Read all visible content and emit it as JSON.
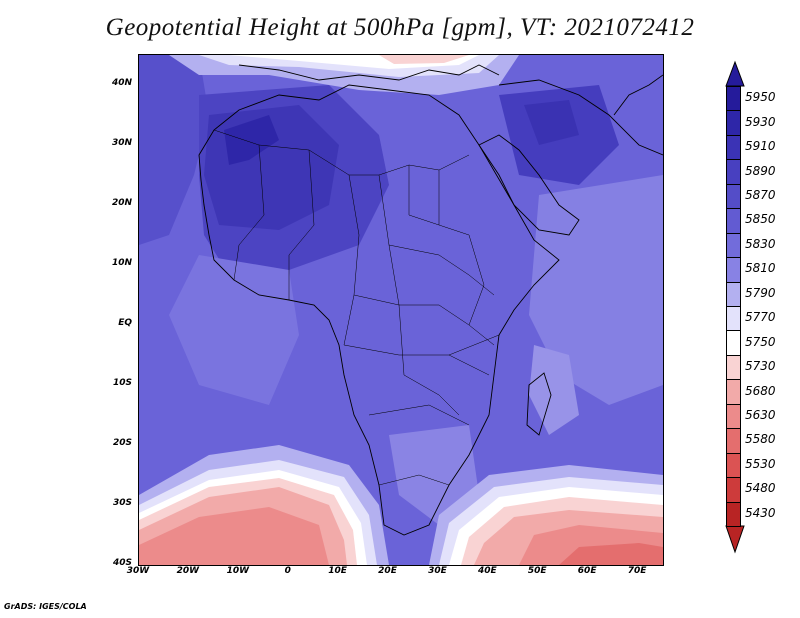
{
  "title": "Geopotential Height at 500hPa [gpm], VT: 2021072412",
  "footer": "GrADS: IGES/COLA",
  "map": {
    "projection": "lat-lon",
    "lon_range": [
      -30,
      75
    ],
    "lat_range": [
      -40,
      45
    ],
    "y_ticks": [
      {
        "label": "40N",
        "lat": 40
      },
      {
        "label": "30N",
        "lat": 30
      },
      {
        "label": "20N",
        "lat": 20
      },
      {
        "label": "10N",
        "lat": 10
      },
      {
        "label": "EQ",
        "lat": 0
      },
      {
        "label": "10S",
        "lat": -10
      },
      {
        "label": "20S",
        "lat": -20
      },
      {
        "label": "30S",
        "lat": -30
      },
      {
        "label": "40S",
        "lat": -40
      }
    ],
    "x_ticks": [
      {
        "label": "30W",
        "lon": -30
      },
      {
        "label": "20W",
        "lon": -20
      },
      {
        "label": "10W",
        "lon": -10
      },
      {
        "label": "0",
        "lon": 0
      },
      {
        "label": "10E",
        "lon": 10
      },
      {
        "label": "20E",
        "lon": 20
      },
      {
        "label": "30E",
        "lon": 30
      },
      {
        "label": "40E",
        "lon": 40
      },
      {
        "label": "50E",
        "lon": 50
      },
      {
        "label": "60E",
        "lon": 60
      },
      {
        "label": "70E",
        "lon": 70
      }
    ]
  },
  "colorbar": {
    "levels": [
      {
        "label": "5950",
        "color": "#251b9b"
      },
      {
        "label": "5930",
        "color": "#2e26a8"
      },
      {
        "label": "5910",
        "color": "#3b33b5"
      },
      {
        "label": "5890",
        "color": "#4840c0"
      },
      {
        "label": "5870",
        "color": "#544dc8"
      },
      {
        "label": "5850",
        "color": "#625bd2"
      },
      {
        "label": "5830",
        "color": "#726cdb"
      },
      {
        "label": "5810",
        "color": "#8882e4"
      },
      {
        "label": "5790",
        "color": "#b3b0f0"
      },
      {
        "label": "5770",
        "color": "#e3e2fb"
      },
      {
        "label": "5750",
        "color": "#ffffff"
      },
      {
        "label": "5730",
        "color": "#f9d3d3"
      },
      {
        "label": "5680",
        "color": "#f2aaa9"
      },
      {
        "label": "5630",
        "color": "#ec8b8b"
      },
      {
        "label": "5580",
        "color": "#e46e6e"
      },
      {
        "label": "5530",
        "color": "#db5353"
      },
      {
        "label": "5480",
        "color": "#cd3b3b"
      },
      {
        "label": "5430",
        "color": "#b82424"
      }
    ],
    "top_extension_color": "#251b9b",
    "bottom_extension_color": "#b82424"
  }
}
